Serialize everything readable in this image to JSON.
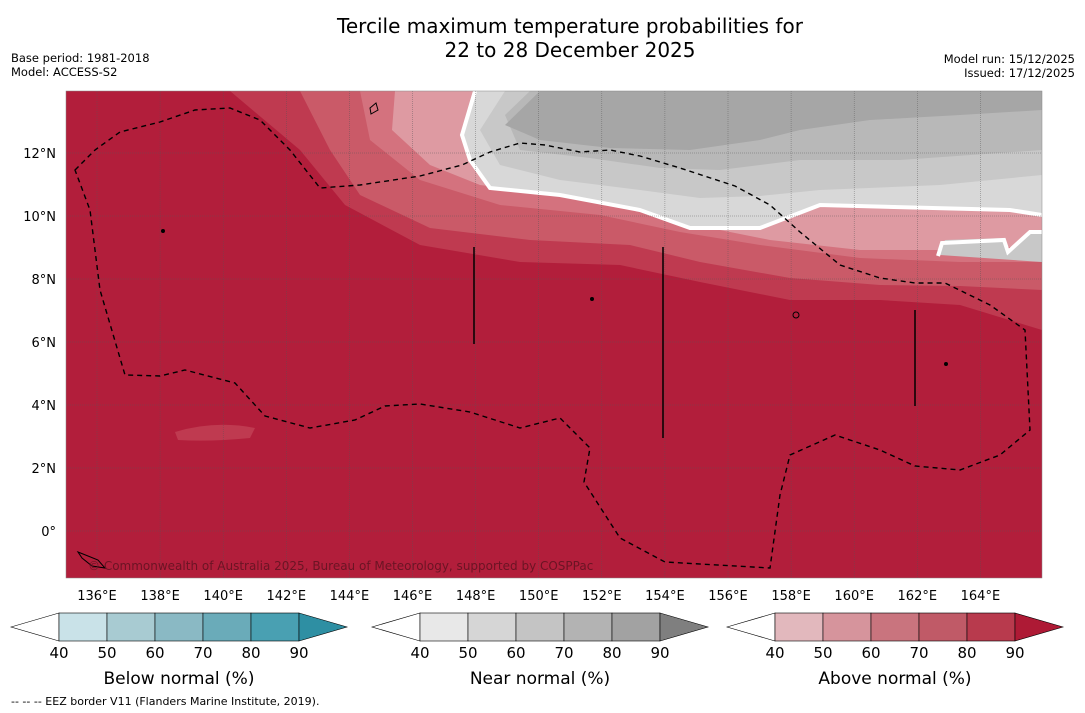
{
  "title": {
    "line1": "Tercile maximum temperature probabilities for",
    "line2": "22 to 28 December 2025"
  },
  "meta": {
    "base_period": "Base period: 1981-2018",
    "model": "Model: ACCESS-S2",
    "model_run": "Model run: 15/12/2025",
    "issued": "Issued: 17/12/2025"
  },
  "map": {
    "lon_labels": [
      "136°E",
      "138°E",
      "140°E",
      "142°E",
      "144°E",
      "146°E",
      "148°E",
      "150°E",
      "152°E",
      "154°E",
      "156°E",
      "158°E",
      "160°E",
      "162°E",
      "164°E"
    ],
    "lat_labels": [
      "12°N",
      "10°N",
      "8°N",
      "6°N",
      "4°N",
      "2°N",
      "0°"
    ],
    "copyright": "© Commonwealth of Australia 2025, Bureau of Meteorology, supported by COSPPac",
    "colors": {
      "above_90": "#b21e3b",
      "above_80": "#bf3a50",
      "above_70": "#ca5a68",
      "above_60": "#d4727e",
      "above_50": "#de9aa2",
      "above_40": "#e8c0c5",
      "near_50": "#d8d8d8",
      "near_60": "#c8c8c8",
      "near_70": "#b8b8b8",
      "near_80": "#a6a6a6",
      "near_90": "#8f8f8f"
    }
  },
  "colorbars": [
    {
      "name": "below-normal",
      "title": "Below normal (%)",
      "labels": [
        "40",
        "50",
        "60",
        "70",
        "80",
        "90"
      ],
      "colors": [
        "#ffffff",
        "#c9e2e8",
        "#a8cbd2",
        "#8ab9c4",
        "#6aabb9",
        "#49a0b2",
        "#2e8fa3"
      ]
    },
    {
      "name": "near-normal",
      "title": "Near normal (%)",
      "labels": [
        "40",
        "50",
        "60",
        "70",
        "80",
        "90"
      ],
      "colors": [
        "#ffffff",
        "#e8e8e8",
        "#d6d6d6",
        "#c4c4c4",
        "#b3b3b3",
        "#a2a2a2",
        "#7f7f7f"
      ]
    },
    {
      "name": "above-normal",
      "title": "Above normal (%)",
      "labels": [
        "40",
        "50",
        "60",
        "70",
        "80",
        "90"
      ],
      "colors": [
        "#ffffff",
        "#e2b8bd",
        "#d6949c",
        "#c9747e",
        "#c05a67",
        "#b83a4d",
        "#ae1a35"
      ]
    }
  ],
  "footnote": "--  --  -- EEZ border V11 (Flanders Marine Institute, 2019)."
}
